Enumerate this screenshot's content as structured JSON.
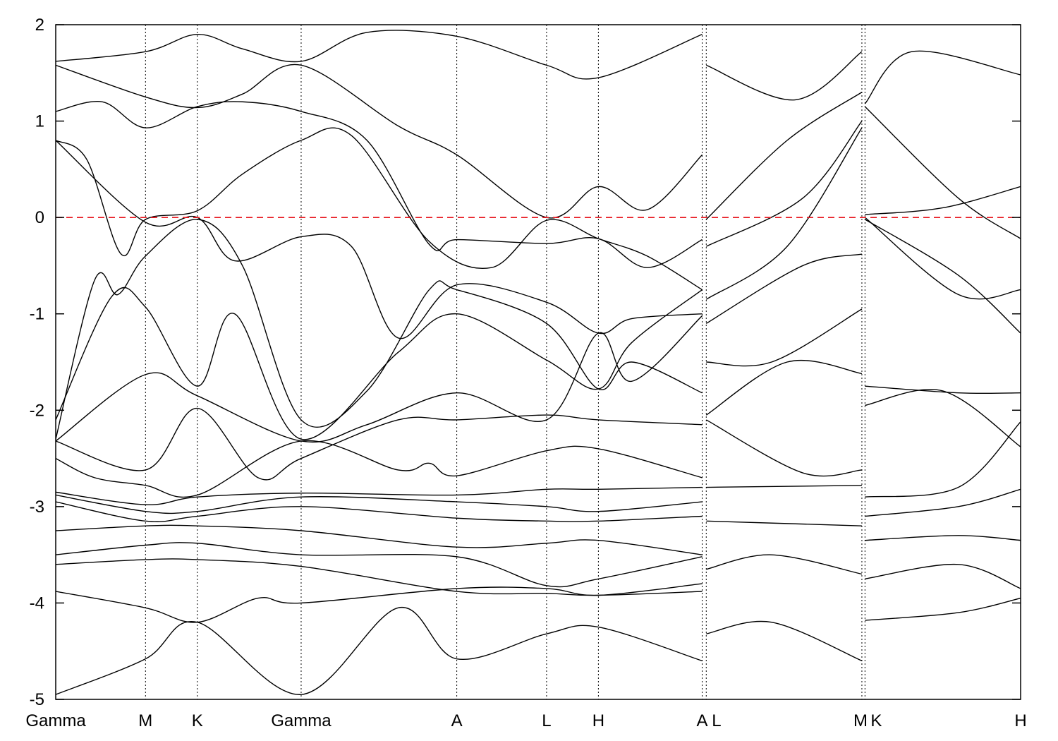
{
  "chart_data": {
    "type": "line",
    "title": "",
    "xlabel": "",
    "ylabel": "",
    "ylim": [
      -5,
      2
    ],
    "yticks": [
      "2",
      "1",
      "0",
      "-1",
      "-2",
      "-3",
      "-4",
      "-5"
    ],
    "ytick_values": [
      2,
      1,
      0,
      -1,
      -2,
      -3,
      -4,
      -5
    ],
    "xticks": [
      {
        "label": "Gamma",
        "x": 0.0
      },
      {
        "label": "M",
        "x": 0.577
      },
      {
        "label": "K",
        "x": 0.91
      },
      {
        "label": "Gamma",
        "x": 1.577
      },
      {
        "label": "A",
        "x": 2.577
      },
      {
        "label": "L",
        "x": 3.154
      },
      {
        "label": "H",
        "x": 3.487
      },
      {
        "label": "A",
        "x": 4.154
      },
      {
        "label": "L",
        "x": 4.18
      },
      {
        "label": "M",
        "x": 5.18
      },
      {
        "label": "K",
        "x": 5.2
      },
      {
        "label": "H",
        "x": 6.2
      }
    ],
    "fermi_level": 0,
    "grid": "vertical dotted lines at high-symmetry points",
    "colors": {
      "bands": "#000000",
      "fermi": "#e8141c"
    },
    "series": [
      {
        "segment": 1,
        "values": [
          [
            0.0,
            1.62
          ],
          [
            0.577,
            1.72
          ],
          [
            0.91,
            1.9
          ],
          [
            1.2,
            1.75
          ],
          [
            1.577,
            1.62
          ],
          [
            2.0,
            1.92
          ],
          [
            2.577,
            1.88
          ],
          [
            3.154,
            1.58
          ],
          [
            3.487,
            1.45
          ],
          [
            4.154,
            1.9
          ]
        ]
      },
      {
        "segment": 1,
        "values": [
          [
            0.0,
            1.58
          ],
          [
            0.577,
            1.25
          ],
          [
            0.91,
            1.14
          ],
          [
            1.2,
            1.28
          ],
          [
            1.577,
            1.58
          ],
          [
            2.2,
            0.95
          ],
          [
            2.577,
            0.65
          ],
          [
            3.154,
            0.0
          ],
          [
            3.487,
            0.32
          ],
          [
            3.8,
            0.08
          ],
          [
            4.154,
            0.65
          ]
        ]
      },
      {
        "segment": 1,
        "values": [
          [
            0.0,
            1.1
          ],
          [
            0.3,
            1.2
          ],
          [
            0.577,
            0.93
          ],
          [
            0.91,
            1.15
          ],
          [
            1.2,
            1.2
          ],
          [
            1.577,
            1.1
          ],
          [
            2.0,
            0.8
          ],
          [
            2.4,
            -0.28
          ],
          [
            2.577,
            -0.23
          ],
          [
            3.154,
            -0.27
          ],
          [
            3.487,
            -0.22
          ],
          [
            3.8,
            -0.52
          ],
          [
            4.154,
            -0.23
          ]
        ]
      },
      {
        "segment": 1,
        "values": [
          [
            0.0,
            0.8
          ],
          [
            0.2,
            0.6
          ],
          [
            0.42,
            -0.38
          ],
          [
            0.577,
            -0.02
          ],
          [
            0.91,
            0.07
          ],
          [
            1.2,
            0.45
          ],
          [
            1.577,
            0.8
          ],
          [
            1.9,
            0.85
          ],
          [
            2.4,
            -0.25
          ],
          [
            2.8,
            -0.52
          ],
          [
            3.154,
            -0.03
          ],
          [
            3.487,
            -0.22
          ],
          [
            3.8,
            -0.4
          ],
          [
            4.154,
            -0.75
          ]
        ]
      },
      {
        "segment": 1,
        "values": [
          [
            0.0,
            0.8
          ],
          [
            0.577,
            -0.05
          ],
          [
            0.91,
            0.0
          ],
          [
            1.15,
            -0.45
          ],
          [
            1.577,
            -0.2
          ],
          [
            1.9,
            -0.3
          ],
          [
            2.2,
            -1.25
          ],
          [
            2.577,
            -0.7
          ],
          [
            3.154,
            -0.88
          ],
          [
            3.487,
            -1.2
          ],
          [
            3.7,
            -1.05
          ],
          [
            4.154,
            -1.0
          ]
        ]
      },
      {
        "segment": 1,
        "values": [
          [
            0.0,
            -2.3
          ],
          [
            0.25,
            -0.65
          ],
          [
            0.4,
            -0.8
          ],
          [
            0.577,
            -0.4
          ],
          [
            0.91,
            -0.02
          ],
          [
            1.2,
            -0.5
          ],
          [
            1.577,
            -2.1
          ],
          [
            2.0,
            -1.8
          ],
          [
            2.4,
            -0.75
          ],
          [
            2.577,
            -0.75
          ],
          [
            3.154,
            -1.1
          ],
          [
            3.487,
            -1.78
          ],
          [
            3.7,
            -1.5
          ],
          [
            4.154,
            -1.82
          ]
        ]
      },
      {
        "segment": 1,
        "values": [
          [
            0.0,
            -2.1
          ],
          [
            0.36,
            -0.82
          ],
          [
            0.577,
            -0.93
          ],
          [
            0.91,
            -1.75
          ],
          [
            1.15,
            -1.0
          ],
          [
            1.577,
            -2.3
          ],
          [
            2.2,
            -1.4
          ],
          [
            2.577,
            -1.0
          ],
          [
            3.154,
            -1.48
          ],
          [
            3.487,
            -1.78
          ],
          [
            3.7,
            -1.3
          ],
          [
            4.154,
            -0.75
          ]
        ]
      },
      {
        "segment": 1,
        "values": [
          [
            0.0,
            -2.32
          ],
          [
            0.577,
            -1.63
          ],
          [
            0.91,
            -1.85
          ],
          [
            1.577,
            -2.32
          ],
          [
            2.0,
            -2.15
          ],
          [
            2.577,
            -1.82
          ],
          [
            3.154,
            -2.1
          ],
          [
            3.487,
            -1.2
          ],
          [
            3.7,
            -1.7
          ],
          [
            4.154,
            -1.02
          ]
        ]
      },
      {
        "segment": 1,
        "values": [
          [
            0.0,
            -2.32
          ],
          [
            0.577,
            -2.62
          ],
          [
            0.91,
            -1.98
          ],
          [
            1.3,
            -2.7
          ],
          [
            1.577,
            -2.5
          ],
          [
            2.2,
            -2.1
          ],
          [
            2.577,
            -2.1
          ],
          [
            3.154,
            -2.05
          ],
          [
            3.487,
            -2.1
          ],
          [
            4.154,
            -2.15
          ]
        ]
      },
      {
        "segment": 1,
        "values": [
          [
            0.0,
            -2.5
          ],
          [
            0.25,
            -2.7
          ],
          [
            0.577,
            -2.78
          ],
          [
            0.91,
            -2.88
          ],
          [
            1.577,
            -2.32
          ],
          [
            2.2,
            -2.62
          ],
          [
            2.4,
            -2.55
          ],
          [
            2.577,
            -2.68
          ],
          [
            3.154,
            -2.42
          ],
          [
            3.487,
            -2.4
          ],
          [
            4.154,
            -2.7
          ]
        ]
      },
      {
        "segment": 1,
        "values": [
          [
            0.0,
            -2.85
          ],
          [
            0.577,
            -2.98
          ],
          [
            0.91,
            -2.9
          ],
          [
            1.577,
            -2.86
          ],
          [
            2.577,
            -2.88
          ],
          [
            3.154,
            -2.82
          ],
          [
            3.487,
            -2.82
          ],
          [
            4.154,
            -2.8
          ]
        ]
      },
      {
        "segment": 1,
        "values": [
          [
            0.0,
            -2.88
          ],
          [
            0.577,
            -3.05
          ],
          [
            0.91,
            -3.05
          ],
          [
            1.577,
            -2.9
          ],
          [
            2.577,
            -2.95
          ],
          [
            3.154,
            -3.0
          ],
          [
            3.487,
            -3.05
          ],
          [
            4.154,
            -2.95
          ]
        ]
      },
      {
        "segment": 1,
        "values": [
          [
            0.0,
            -2.95
          ],
          [
            0.577,
            -3.15
          ],
          [
            0.91,
            -3.1
          ],
          [
            1.577,
            -3.0
          ],
          [
            2.577,
            -3.12
          ],
          [
            3.154,
            -3.15
          ],
          [
            3.487,
            -3.15
          ],
          [
            4.154,
            -3.1
          ]
        ]
      },
      {
        "segment": 1,
        "values": [
          [
            0.0,
            -3.25
          ],
          [
            0.577,
            -3.2
          ],
          [
            0.91,
            -3.2
          ],
          [
            1.577,
            -3.25
          ],
          [
            2.577,
            -3.42
          ],
          [
            3.154,
            -3.38
          ],
          [
            3.487,
            -3.35
          ],
          [
            4.154,
            -3.5
          ]
        ]
      },
      {
        "segment": 1,
        "values": [
          [
            0.0,
            -3.5
          ],
          [
            0.577,
            -3.4
          ],
          [
            0.91,
            -3.38
          ],
          [
            1.577,
            -3.5
          ],
          [
            2.577,
            -3.52
          ],
          [
            3.154,
            -3.82
          ],
          [
            3.487,
            -3.75
          ],
          [
            4.154,
            -3.52
          ]
        ]
      },
      {
        "segment": 1,
        "values": [
          [
            0.0,
            -3.6
          ],
          [
            0.577,
            -3.55
          ],
          [
            0.91,
            -3.55
          ],
          [
            1.577,
            -3.62
          ],
          [
            2.577,
            -3.88
          ],
          [
            3.154,
            -3.9
          ],
          [
            3.487,
            -3.92
          ],
          [
            4.154,
            -3.88
          ]
        ]
      },
      {
        "segment": 1,
        "values": [
          [
            0.0,
            -3.88
          ],
          [
            0.577,
            -4.05
          ],
          [
            0.91,
            -4.2
          ],
          [
            1.3,
            -3.95
          ],
          [
            1.577,
            -4.0
          ],
          [
            2.577,
            -3.85
          ],
          [
            3.154,
            -3.85
          ],
          [
            3.487,
            -3.92
          ],
          [
            4.154,
            -3.8
          ]
        ]
      },
      {
        "segment": 1,
        "values": [
          [
            0.0,
            -4.95
          ],
          [
            0.577,
            -4.58
          ],
          [
            0.91,
            -4.2
          ],
          [
            1.577,
            -4.95
          ],
          [
            2.2,
            -4.05
          ],
          [
            2.577,
            -4.58
          ],
          [
            3.154,
            -4.32
          ],
          [
            3.487,
            -4.25
          ],
          [
            4.154,
            -4.6
          ]
        ]
      },
      {
        "segment": 2,
        "values": [
          [
            4.18,
            1.58
          ],
          [
            4.75,
            1.22
          ],
          [
            5.18,
            1.72
          ]
        ]
      },
      {
        "segment": 2,
        "values": [
          [
            4.18,
            -0.02
          ],
          [
            4.7,
            0.8
          ],
          [
            5.18,
            1.3
          ]
        ]
      },
      {
        "segment": 2,
        "values": [
          [
            4.18,
            -0.3
          ],
          [
            4.8,
            0.2
          ],
          [
            5.18,
            1.0
          ]
        ]
      },
      {
        "segment": 2,
        "values": [
          [
            4.18,
            -0.85
          ],
          [
            4.7,
            -0.3
          ],
          [
            5.18,
            0.93
          ]
        ]
      },
      {
        "segment": 2,
        "values": [
          [
            4.18,
            -1.1
          ],
          [
            4.8,
            -0.5
          ],
          [
            5.18,
            -0.38
          ]
        ]
      },
      {
        "segment": 2,
        "values": [
          [
            4.18,
            -1.5
          ],
          [
            4.6,
            -1.5
          ],
          [
            5.18,
            -0.95
          ]
        ]
      },
      {
        "segment": 2,
        "values": [
          [
            4.18,
            -2.05
          ],
          [
            4.7,
            -1.5
          ],
          [
            5.18,
            -1.62
          ]
        ]
      },
      {
        "segment": 2,
        "values": [
          [
            4.18,
            -2.1
          ],
          [
            4.8,
            -2.65
          ],
          [
            5.18,
            -2.62
          ]
        ]
      },
      {
        "segment": 2,
        "values": [
          [
            4.18,
            -2.8
          ],
          [
            5.18,
            -2.78
          ]
        ]
      },
      {
        "segment": 2,
        "values": [
          [
            4.18,
            -3.15
          ],
          [
            5.18,
            -3.2
          ]
        ]
      },
      {
        "segment": 2,
        "values": [
          [
            4.18,
            -3.65
          ],
          [
            4.6,
            -3.5
          ],
          [
            5.18,
            -3.7
          ]
        ]
      },
      {
        "segment": 2,
        "values": [
          [
            4.18,
            -4.32
          ],
          [
            4.6,
            -4.2
          ],
          [
            5.18,
            -4.6
          ]
        ]
      },
      {
        "segment": 3,
        "values": [
          [
            5.2,
            1.18
          ],
          [
            5.5,
            1.72
          ],
          [
            6.2,
            1.48
          ]
        ]
      },
      {
        "segment": 3,
        "values": [
          [
            5.2,
            1.15
          ],
          [
            5.8,
            0.2
          ],
          [
            6.2,
            -0.22
          ]
        ]
      },
      {
        "segment": 3,
        "values": [
          [
            5.2,
            0.03
          ],
          [
            5.7,
            0.1
          ],
          [
            6.2,
            0.32
          ]
        ]
      },
      {
        "segment": 3,
        "values": [
          [
            5.2,
            0.0
          ],
          [
            5.8,
            -0.8
          ],
          [
            6.2,
            -0.75
          ]
        ]
      },
      {
        "segment": 3,
        "values": [
          [
            5.2,
            -0.02
          ],
          [
            5.8,
            -0.6
          ],
          [
            6.2,
            -1.2
          ]
        ]
      },
      {
        "segment": 3,
        "values": [
          [
            5.2,
            -1.75
          ],
          [
            5.8,
            -1.82
          ],
          [
            6.2,
            -1.82
          ]
        ]
      },
      {
        "segment": 3,
        "values": [
          [
            5.2,
            -1.95
          ],
          [
            5.7,
            -1.8
          ],
          [
            6.2,
            -2.38
          ]
        ]
      },
      {
        "segment": 3,
        "values": [
          [
            5.2,
            -2.9
          ],
          [
            5.8,
            -2.8
          ],
          [
            6.2,
            -2.12
          ]
        ]
      },
      {
        "segment": 3,
        "values": [
          [
            5.2,
            -3.1
          ],
          [
            5.8,
            -3.0
          ],
          [
            6.2,
            -2.82
          ]
        ]
      },
      {
        "segment": 3,
        "values": [
          [
            5.2,
            -3.35
          ],
          [
            5.8,
            -3.3
          ],
          [
            6.2,
            -3.35
          ]
        ]
      },
      {
        "segment": 3,
        "values": [
          [
            5.2,
            -3.75
          ],
          [
            5.8,
            -3.6
          ],
          [
            6.2,
            -3.85
          ]
        ]
      },
      {
        "segment": 3,
        "values": [
          [
            5.2,
            -4.18
          ],
          [
            5.8,
            -4.1
          ],
          [
            6.2,
            -3.95
          ]
        ]
      }
    ]
  }
}
